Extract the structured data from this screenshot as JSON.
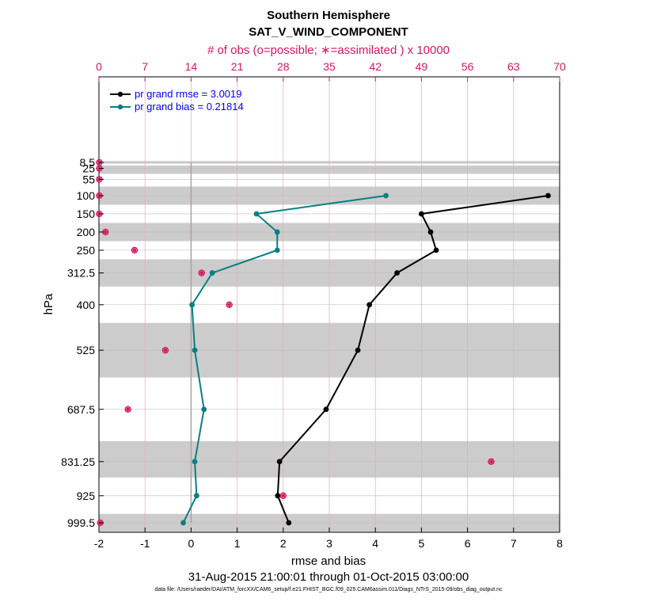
{
  "chart_data": {
    "type": "line",
    "title": "Southern Hemisphere",
    "subtitle": "SAT_V_WIND_COMPONENT",
    "top_axis_label": "# of obs (o=possible; ∗=assimilated ) x 10000",
    "xlabel": "rmse and bias",
    "ylabel": "hPa",
    "date_range": "31-Aug-2015 21:00:01 through 01-Oct-2015 03:00:00",
    "data_file": "data file: /Users/raeder/DAI/ATM_forcXX/CAM6_setup/f.e21.FHIST_BGC.f09_025.CAM6assim.011/Diags_NTrS_2015-09/obs_diag_output.nc",
    "xlim": [
      -2,
      8
    ],
    "top_xlim": [
      0,
      70
    ],
    "bottom_ticks": [
      "-2",
      "-1",
      "0",
      "1",
      "2",
      "3",
      "4",
      "5",
      "6",
      "7",
      "8"
    ],
    "top_ticks": [
      "0",
      "7",
      "14",
      "21",
      "28",
      "35",
      "42",
      "49",
      "56",
      "63",
      "70"
    ],
    "levels": [
      "8.5",
      "25",
      "55",
      "100",
      "150",
      "200",
      "250",
      "312.5",
      "400",
      "525",
      "687.5",
      "831.25",
      "925",
      "999.5"
    ],
    "series": [
      {
        "name": "pr grand rmse = 3.0019",
        "color": "#000000",
        "levels": [
          "100",
          "150",
          "200",
          "250",
          "312.5",
          "400",
          "525",
          "687.5",
          "831.25",
          "925",
          "999.5"
        ],
        "values": [
          7.75,
          5.0,
          5.2,
          5.32,
          4.47,
          3.87,
          3.62,
          2.93,
          1.92,
          1.88,
          2.12
        ]
      },
      {
        "name": "pr grand bias = 0.21814",
        "color": "#0a7f83",
        "levels": [
          "100",
          "150",
          "200",
          "250",
          "312.5",
          "400",
          "525",
          "687.5",
          "831.25",
          "925",
          "999.5"
        ],
        "values": [
          4.23,
          1.42,
          1.87,
          1.87,
          0.46,
          0.02,
          0.08,
          0.28,
          0.08,
          0.12,
          -0.17
        ]
      }
    ],
    "obs_counts_x10000": {
      "levels": [
        "8.5",
        "25",
        "55",
        "100",
        "150",
        "200",
        "250",
        "312.5",
        "400",
        "525",
        "687.5",
        "831.25",
        "925",
        "999.5"
      ],
      "values": [
        0.05,
        0.05,
        0.05,
        0.05,
        0.05,
        1.0,
        5.4,
        15.6,
        19.8,
        10.1,
        4.4,
        59.6,
        28.0,
        0.2
      ]
    },
    "shaded_bands_hPa": [
      [
        5,
        12
      ],
      [
        17,
        40
      ],
      [
        75,
        125
      ],
      [
        175,
        225
      ],
      [
        275,
        350
      ],
      [
        450,
        600
      ],
      [
        775,
        875
      ],
      [
        975,
        1024
      ]
    ],
    "grid": true,
    "legend_position": "top-left"
  }
}
